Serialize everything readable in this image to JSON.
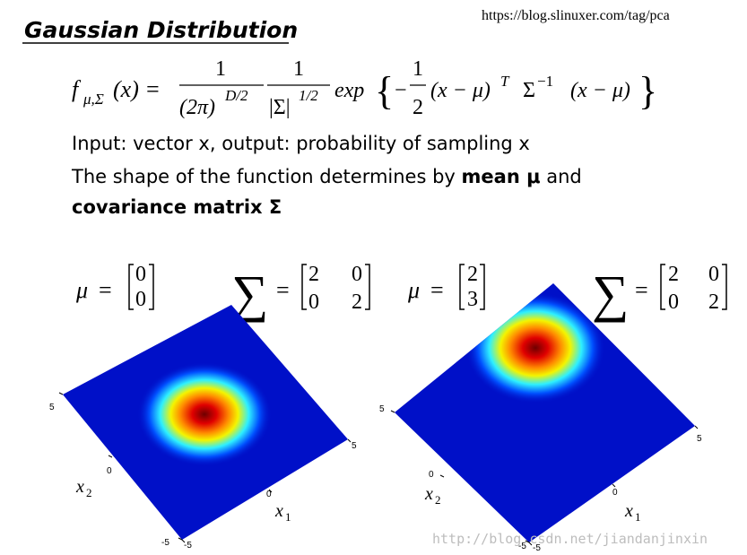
{
  "header": {
    "title": "Gaussian Distribution",
    "url": "https://blog.slinuxer.com/tag/pca"
  },
  "formula": {
    "f": "f",
    "f_sub": "μ,Σ",
    "lhs_arg": "(x) =",
    "num1": "1",
    "den1": "(2π)",
    "den1_sup": "D/2",
    "num2": "1",
    "den2": "|Σ|",
    "den2_sup": "1/2",
    "exp": "exp",
    "brace_open": "{",
    "minus": "−",
    "half_num": "1",
    "half_den": "2",
    "diff1": "(x − μ)",
    "transpose": "T",
    "sigma": "Σ",
    "inverse": "−1",
    "diff2": "(x − μ)",
    "brace_close": "}"
  },
  "text": {
    "line1": "Input: vector x, output: probability of sampling x",
    "line2_start": "The shape of the function determines by ",
    "line2_bold": "mean μ",
    "line2_end": " and",
    "line3_bold": "covariance matrix Σ"
  },
  "plots": [
    {
      "mu_symbol": "μ",
      "equals": "=",
      "mu": [
        "0",
        "0"
      ],
      "sigma_symbol": "∑",
      "sigma_equals": "=",
      "sigma": [
        [
          "2",
          "0"
        ],
        [
          "0",
          "2"
        ]
      ],
      "x2_ticks": [
        "5",
        "0",
        "-5"
      ],
      "x1_ticks": [
        "-5",
        "0",
        "5"
      ],
      "x2_label": "x",
      "x2_sub": "2",
      "x1_label": "x",
      "x1_sub": "1"
    },
    {
      "mu_symbol": "μ",
      "equals": "=",
      "mu": [
        "2",
        "3"
      ],
      "sigma_symbol": "∑",
      "sigma_equals": "=",
      "sigma": [
        [
          "2",
          "0"
        ],
        [
          "0",
          "2"
        ]
      ],
      "x2_ticks": [
        "5",
        "0",
        "-5"
      ],
      "x1_ticks": [
        "-5",
        "0",
        "5"
      ],
      "x2_label": "x",
      "x2_sub": "2",
      "x1_label": "x",
      "x1_sub": "1"
    }
  ],
  "watermark": "http://blog.csdn.net/jiandanjinxin"
}
